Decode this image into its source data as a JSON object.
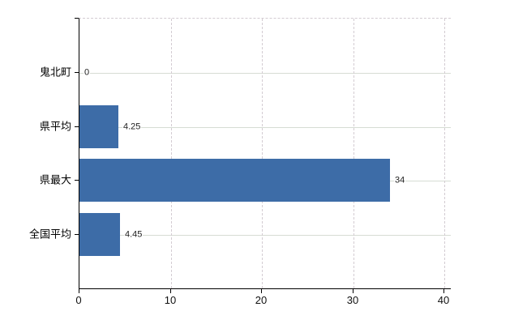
{
  "chart_data": {
    "type": "bar",
    "orientation": "horizontal",
    "title": "",
    "xlabel": "",
    "ylabel": "",
    "categories": [
      "鬼北町",
      "県平均",
      "県最大",
      "全国平均"
    ],
    "values": [
      0,
      4.25,
      34,
      4.45
    ],
    "value_labels": [
      "0",
      "4.25",
      "34",
      "4.45"
    ],
    "xlim": [
      0,
      40.5
    ],
    "x_ticks": [
      "0",
      "10",
      "20",
      "30",
      "40"
    ],
    "x_tick_values": [
      0,
      10,
      20,
      30,
      40
    ],
    "grid": {
      "vertical": "dashed",
      "horizontal": "solid"
    },
    "legend_position": "none",
    "colors": {
      "bar": "#3D6CA7",
      "axis": "#000000",
      "vertical_grid": "#d3ccd2",
      "horizontal_grid": "#d6dcd4",
      "value_label": "#222222",
      "tick_label": "#111111",
      "background": "#ffffff"
    }
  }
}
